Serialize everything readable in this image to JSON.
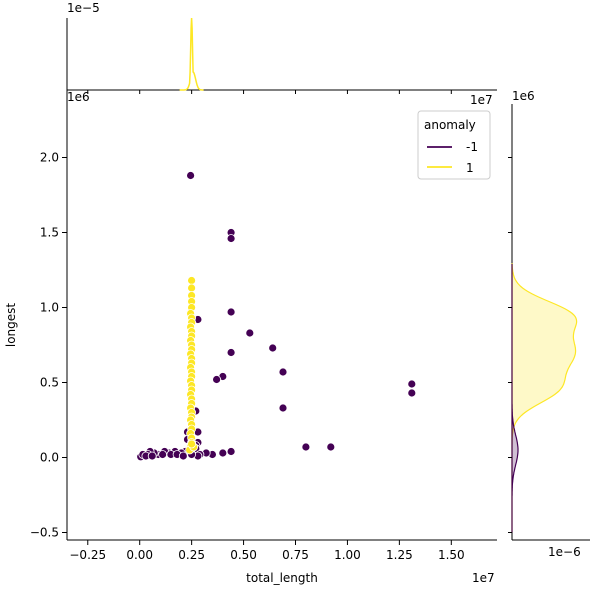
{
  "chart_data": {
    "type": "scatter",
    "subtype": "jointplot-with-kde-marginals",
    "xlabel": "total_length",
    "ylabel": "longest",
    "x_offset_label": "1e7",
    "y_offset_label": "1e6",
    "top_marginal_offset_label": "1e−5",
    "top_joint_offset_label_x": "1e7",
    "top_joint_offset_label_y": "1e6",
    "right_marginal_offset_label_top": "1e6",
    "right_marginal_offset_label_bottom": "1e−6",
    "x_unit_scale": 10000000,
    "y_unit_scale": 1000000,
    "xlim": [
      -0.35,
      1.72
    ],
    "ylim": [
      -0.55,
      2.45
    ],
    "x_ticks": [
      -0.25,
      0.0,
      0.25,
      0.5,
      0.75,
      1.0,
      1.25,
      1.5
    ],
    "x_tick_labels": [
      "−0.25",
      "0.00",
      "0.25",
      "0.50",
      "0.75",
      "1.00",
      "1.25",
      "1.50"
    ],
    "y_ticks": [
      -0.5,
      0.0,
      0.5,
      1.0,
      1.5,
      2.0
    ],
    "y_tick_labels": [
      "−0.5",
      "0.0",
      "0.5",
      "1.0",
      "1.5",
      "2.0"
    ],
    "grid": false,
    "legend": {
      "title": "anomaly",
      "placement": "top-right",
      "entries": [
        {
          "label": "-1",
          "color": "#440154"
        },
        {
          "label": "1",
          "color": "#fde725"
        }
      ]
    },
    "series": [
      {
        "name": "-1",
        "color": "#440154",
        "points": [
          [
            0.245,
            1.88
          ],
          [
            0.44,
            1.5
          ],
          [
            0.44,
            1.46
          ],
          [
            0.44,
            0.97
          ],
          [
            0.28,
            0.92
          ],
          [
            0.53,
            0.83
          ],
          [
            0.64,
            0.73
          ],
          [
            0.44,
            0.7
          ],
          [
            0.69,
            0.57
          ],
          [
            0.4,
            0.54
          ],
          [
            0.37,
            0.52
          ],
          [
            1.31,
            0.49
          ],
          [
            1.31,
            0.43
          ],
          [
            0.69,
            0.33
          ],
          [
            0.27,
            0.31
          ],
          [
            0.28,
            0.17
          ],
          [
            0.23,
            0.17
          ],
          [
            0.23,
            0.12
          ],
          [
            0.28,
            0.1
          ],
          [
            0.27,
            0.08
          ],
          [
            0.8,
            0.07
          ],
          [
            0.92,
            0.07
          ],
          [
            0.24,
            0.06
          ],
          [
            0.27,
            0.06
          ],
          [
            0.22,
            0.04
          ],
          [
            0.44,
            0.04
          ],
          [
            0.4,
            0.03
          ],
          [
            0.35,
            0.02
          ],
          [
            0.32,
            0.03
          ],
          [
            0.29,
            0.02
          ],
          [
            0.28,
            0.01
          ],
          [
            0.2,
            0.03
          ],
          [
            0.17,
            0.04
          ],
          [
            0.14,
            0.03
          ],
          [
            0.12,
            0.04
          ],
          [
            0.09,
            0.02
          ],
          [
            0.07,
            0.03
          ],
          [
            0.05,
            0.04
          ],
          [
            0.04,
            0.02
          ],
          [
            0.02,
            0.01
          ],
          [
            0.01,
            0.01
          ],
          [
            0.005,
            0.005
          ],
          [
            0.015,
            0.02
          ],
          [
            0.03,
            0.01
          ],
          [
            0.06,
            0.01
          ],
          [
            0.11,
            0.02
          ],
          [
            0.15,
            0.02
          ],
          [
            0.18,
            0.02
          ],
          [
            0.21,
            0.01
          ],
          [
            0.25,
            0.02
          ]
        ]
      },
      {
        "name": "1",
        "color": "#fde725",
        "points": [
          [
            0.25,
            1.18
          ],
          [
            0.25,
            1.13
          ],
          [
            0.25,
            1.08
          ],
          [
            0.25,
            1.04
          ],
          [
            0.25,
            1.0
          ],
          [
            0.245,
            0.96
          ],
          [
            0.25,
            0.93
          ],
          [
            0.25,
            0.9
          ],
          [
            0.245,
            0.87
          ],
          [
            0.25,
            0.84
          ],
          [
            0.25,
            0.81
          ],
          [
            0.245,
            0.78
          ],
          [
            0.25,
            0.75
          ],
          [
            0.25,
            0.72
          ],
          [
            0.245,
            0.69
          ],
          [
            0.25,
            0.66
          ],
          [
            0.25,
            0.63
          ],
          [
            0.245,
            0.6
          ],
          [
            0.25,
            0.57
          ],
          [
            0.25,
            0.54
          ],
          [
            0.245,
            0.51
          ],
          [
            0.25,
            0.48
          ],
          [
            0.25,
            0.45
          ],
          [
            0.245,
            0.42
          ],
          [
            0.25,
            0.39
          ],
          [
            0.25,
            0.36
          ],
          [
            0.245,
            0.33
          ],
          [
            0.25,
            0.3
          ],
          [
            0.25,
            0.27
          ],
          [
            0.245,
            0.25
          ],
          [
            0.25,
            0.22
          ],
          [
            0.25,
            0.19
          ],
          [
            0.245,
            0.16
          ],
          [
            0.25,
            0.13
          ],
          [
            0.25,
            0.1
          ],
          [
            0.245,
            0.08
          ],
          [
            0.25,
            0.06
          ],
          [
            0.24,
            0.05
          ],
          [
            0.26,
            0.07
          ],
          [
            0.25,
            0.09
          ]
        ]
      }
    ],
    "top_kde": {
      "series": "1",
      "color": "#fde725",
      "description_of_shape": "narrow spike centred near x=0.25",
      "peak_x": 0.25
    },
    "right_kde": {
      "series": [
        {
          "name": "1",
          "color": "#fde725",
          "fill": true
        },
        {
          "name": "-1",
          "color": "#440154",
          "fill": true
        }
      ]
    }
  }
}
